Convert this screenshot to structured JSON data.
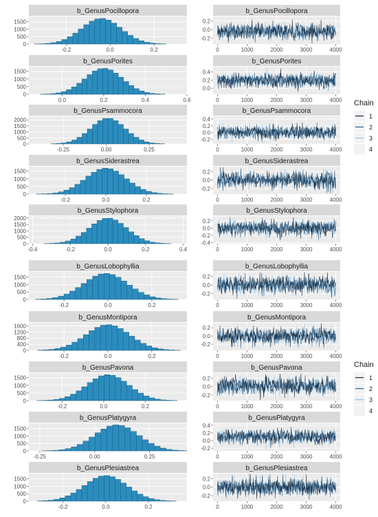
{
  "chart_data": [
    {
      "group": 1,
      "legend": {
        "title": "Chain",
        "chains": [
          "1",
          "2",
          "3",
          "4"
        ],
        "colors": [
          "#132b43",
          "#2f5f87",
          "#93c3e6",
          "#dff0fb"
        ],
        "position": "right"
      },
      "panels": [
        {
          "parameter": "b_GenusPocillopora",
          "histogram": {
            "type": "bar",
            "xlim": [
              -0.37,
              0.35
            ],
            "xticks": [
              -0.2,
              0.0,
              0.2
            ],
            "xtick_labels": [
              "-0.2",
              "0.0",
              "0.2"
            ],
            "ylim": [
              0,
              1850
            ],
            "yticks": [
              0,
              500,
              1000,
              1500
            ],
            "ytick_labels": [
              "0",
              "500",
              "1000",
              "1500"
            ],
            "mean": -0.04,
            "sd": 0.09,
            "peak": 1720,
            "bin_width": 0.025
          },
          "trace": {
            "type": "line",
            "xlim": [
              -150,
              4150
            ],
            "xticks": [
              0,
              1000,
              2000,
              3000,
              4000
            ],
            "xtick_labels": [
              "0",
              "1000",
              "2000",
              "3000",
              "4000"
            ],
            "ylim": [
              -0.33,
              0.3
            ],
            "yticks": [
              -0.2,
              0.0,
              0.2
            ],
            "ytick_labels": [
              "-0.2",
              "0.0",
              "0.2"
            ],
            "mean": -0.04,
            "sd": 0.09,
            "iterations": 4000
          }
        },
        {
          "parameter": "b_GenusPorites",
          "histogram": {
            "type": "bar",
            "xlim": [
              -0.16,
              0.6
            ],
            "xticks": [
              0.0,
              0.2,
              0.4,
              0.6
            ],
            "xtick_labels": [
              "0.0",
              "0.2",
              "0.4",
              "0.6"
            ],
            "ylim": [
              0,
              1800
            ],
            "yticks": [
              0,
              500,
              1000,
              1500
            ],
            "ytick_labels": [
              "0",
              "500",
              "1000",
              "1500"
            ],
            "mean": 0.2,
            "sd": 0.09,
            "peak": 1700,
            "bin_width": 0.025
          },
          "trace": {
            "type": "line",
            "xlim": [
              -150,
              4150
            ],
            "xticks": [
              0,
              1000,
              2000,
              3000,
              4000
            ],
            "xtick_labels": [
              "0",
              "1000",
              "2000",
              "3000",
              "4000"
            ],
            "ylim": [
              -0.15,
              0.53
            ],
            "yticks": [
              0.0,
              0.2,
              0.4
            ],
            "ytick_labels": [
              "0.0",
              "0.2",
              "0.4"
            ],
            "mean": 0.2,
            "sd": 0.09,
            "iterations": 4000
          }
        },
        {
          "parameter": "b_GenusPsammocora",
          "histogram": {
            "type": "bar",
            "xlim": [
              -0.45,
              0.47
            ],
            "xticks": [
              -0.25,
              0.0,
              0.25
            ],
            "xtick_labels": [
              "-0.25",
              "0.00",
              "0.25"
            ],
            "ylim": [
              0,
              2300
            ],
            "yticks": [
              0,
              500,
              1000,
              1500,
              2000
            ],
            "ytick_labels": [
              "0",
              "500",
              "1000",
              "1500",
              "2000"
            ],
            "mean": 0.01,
            "sd": 0.1,
            "peak": 2150,
            "bin_width": 0.03
          },
          "trace": {
            "type": "line",
            "xlim": [
              -150,
              4150
            ],
            "xticks": [
              0,
              1000,
              2000,
              3000,
              4000
            ],
            "xtick_labels": [
              "0",
              "1000",
              "2000",
              "3000",
              "4000"
            ],
            "ylim": [
              -0.33,
              0.48
            ],
            "yticks": [
              -0.2,
              0.0,
              0.2,
              0.4
            ],
            "ytick_labels": [
              "-0.2",
              "0.0",
              "0.2",
              "0.4"
            ],
            "mean": 0.01,
            "sd": 0.1,
            "iterations": 4000
          }
        },
        {
          "parameter": "b_GenusSiderastrea",
          "histogram": {
            "type": "bar",
            "xlim": [
              -0.38,
              0.4
            ],
            "xticks": [
              -0.2,
              0.0,
              0.2
            ],
            "xtick_labels": [
              "-0.2",
              "0.0",
              "0.2"
            ],
            "ylim": [
              0,
              1800
            ],
            "yticks": [
              0,
              500,
              1000,
              1500
            ],
            "ytick_labels": [
              "0",
              "500",
              "1000",
              "1500"
            ],
            "mean": 0.0,
            "sd": 0.1,
            "peak": 1700,
            "bin_width": 0.027
          },
          "trace": {
            "type": "line",
            "xlim": [
              -150,
              4150
            ],
            "xticks": [
              0,
              1000,
              2000,
              3000,
              4000
            ],
            "xtick_labels": [
              "0",
              "1000",
              "2000",
              "3000",
              "4000"
            ],
            "ylim": [
              -0.33,
              0.32
            ],
            "yticks": [
              -0.2,
              0.0,
              0.2
            ],
            "ytick_labels": [
              "-0.2",
              "0.0",
              "0.2"
            ],
            "mean": 0.0,
            "sd": 0.1,
            "iterations": 4000
          }
        },
        {
          "parameter": "b_GenusStylophora",
          "histogram": {
            "type": "bar",
            "xlim": [
              -0.42,
              0.42
            ],
            "xticks": [
              -0.4,
              -0.2,
              0.0,
              0.2,
              0.4
            ],
            "xtick_labels": [
              "-0.4",
              "-0.2",
              "0.0",
              "0.2",
              "0.4"
            ],
            "ylim": [
              0,
              2150
            ],
            "yticks": [
              0,
              500,
              1000,
              1500,
              2000
            ],
            "ytick_labels": [
              "0",
              "500",
              "1000",
              "1500",
              "2000"
            ],
            "mean": 0.0,
            "sd": 0.1,
            "peak": 2000,
            "bin_width": 0.028
          },
          "trace": {
            "type": "line",
            "xlim": [
              -150,
              4150
            ],
            "xticks": [
              0,
              1000,
              2000,
              3000,
              4000
            ],
            "xtick_labels": [
              "0",
              "1000",
              "2000",
              "3000",
              "4000"
            ],
            "ylim": [
              -0.43,
              0.33
            ],
            "yticks": [
              -0.4,
              -0.2,
              0.0,
              0.2
            ],
            "ytick_labels": [
              "-0.4",
              "-0.2",
              "0.0",
              "0.2"
            ],
            "mean": 0.0,
            "sd": 0.1,
            "iterations": 4000
          }
        }
      ]
    },
    {
      "group": 2,
      "legend": {
        "title": "Chain",
        "chains": [
          "1",
          "2",
          "3",
          "4"
        ],
        "colors": [
          "#132b43",
          "#2f5f87",
          "#93c3e6",
          "#dff0fb"
        ],
        "position": "right"
      },
      "panels": [
        {
          "parameter": "b_GenusLobophyllia",
          "histogram": {
            "type": "bar",
            "xlim": [
              -0.36,
              0.36
            ],
            "xticks": [
              -0.2,
              0.0,
              0.2
            ],
            "xtick_labels": [
              "-0.2",
              "0.0",
              "0.2"
            ],
            "ylim": [
              0,
              1850
            ],
            "yticks": [
              0,
              500,
              1000,
              1500
            ],
            "ytick_labels": [
              "0",
              "500",
              "1000",
              "1500"
            ],
            "mean": -0.01,
            "sd": 0.1,
            "peak": 1750,
            "bin_width": 0.026
          },
          "trace": {
            "type": "line",
            "xlim": [
              -150,
              4150
            ],
            "xticks": [
              0,
              1000,
              2000,
              3000,
              4000
            ],
            "xtick_labels": [
              "0",
              "1000",
              "2000",
              "3000",
              "4000"
            ],
            "ylim": [
              -0.33,
              0.3
            ],
            "yticks": [
              -0.2,
              0.0,
              0.2
            ],
            "ytick_labels": [
              "-0.2",
              "0.0",
              "0.2"
            ],
            "mean": 0.0,
            "sd": 0.1,
            "iterations": 4000
          }
        },
        {
          "parameter": "b_GenusMontipora",
          "histogram": {
            "type": "bar",
            "xlim": [
              -0.36,
              0.36
            ],
            "xticks": [
              -0.2,
              0.0,
              0.2
            ],
            "xtick_labels": [
              "-0.2",
              "0.0",
              "0.2"
            ],
            "ylim": [
              0,
              1800
            ],
            "yticks": [
              0,
              400,
              800,
              1200,
              1600
            ],
            "ytick_labels": [
              "0",
              "400",
              "800",
              "1200",
              "1600"
            ],
            "mean": 0.0,
            "sd": 0.1,
            "peak": 1680,
            "bin_width": 0.026
          },
          "trace": {
            "type": "line",
            "xlim": [
              -150,
              4150
            ],
            "xticks": [
              0,
              1000,
              2000,
              3000,
              4000
            ],
            "xtick_labels": [
              "0",
              "1000",
              "2000",
              "3000",
              "4000"
            ],
            "ylim": [
              -0.35,
              0.32
            ],
            "yticks": [
              -0.2,
              0.0,
              0.2
            ],
            "ytick_labels": [
              "-0.2",
              "0.0",
              "0.2"
            ],
            "mean": 0.0,
            "sd": 0.1,
            "iterations": 4000
          }
        },
        {
          "parameter": "b_GenusPavona",
          "histogram": {
            "type": "bar",
            "xlim": [
              -0.36,
              0.4
            ],
            "xticks": [
              -0.2,
              0.0,
              0.2
            ],
            "xtick_labels": [
              "-0.2",
              "0.0",
              "0.2"
            ],
            "ylim": [
              0,
              1800
            ],
            "yticks": [
              0,
              500,
              1000,
              1500
            ],
            "ytick_labels": [
              "0",
              "500",
              "1000",
              "1500"
            ],
            "mean": 0.02,
            "sd": 0.1,
            "peak": 1700,
            "bin_width": 0.027
          },
          "trace": {
            "type": "line",
            "xlim": [
              -150,
              4150
            ],
            "xticks": [
              0,
              1000,
              2000,
              3000,
              4000
            ],
            "xtick_labels": [
              "0",
              "1000",
              "2000",
              "3000",
              "4000"
            ],
            "ylim": [
              -0.33,
              0.32
            ],
            "yticks": [
              -0.2,
              0.0,
              0.2
            ],
            "ytick_labels": [
              "-0.2",
              "0.0",
              "0.2"
            ],
            "mean": 0.02,
            "sd": 0.1,
            "iterations": 4000
          }
        },
        {
          "parameter": "b_GenusPlatygyra",
          "histogram": {
            "type": "bar",
            "xlim": [
              -0.3,
              0.42
            ],
            "xticks": [
              -0.25,
              0.0,
              0.25
            ],
            "xtick_labels": [
              "-0.25",
              "0.00",
              "0.25"
            ],
            "ylim": [
              0,
              1850
            ],
            "yticks": [
              0,
              500,
              1000,
              1500
            ],
            "ytick_labels": [
              "0",
              "500",
              "1000",
              "1500"
            ],
            "mean": 0.1,
            "sd": 0.1,
            "peak": 1750,
            "bin_width": 0.027
          },
          "trace": {
            "type": "line",
            "xlim": [
              -150,
              4150
            ],
            "xticks": [
              0,
              1000,
              2000,
              3000,
              4000
            ],
            "xtick_labels": [
              "0",
              "1000",
              "2000",
              "3000",
              "4000"
            ],
            "ylim": [
              -0.27,
              0.45
            ],
            "yticks": [
              -0.2,
              0.0,
              0.2,
              0.4
            ],
            "ytick_labels": [
              "-0.2",
              "0.0",
              "0.2",
              "0.4"
            ],
            "mean": 0.1,
            "sd": 0.1,
            "iterations": 4000
          }
        },
        {
          "parameter": "b_GenusPlesiastrea",
          "histogram": {
            "type": "bar",
            "xlim": [
              -0.36,
              0.38
            ],
            "xticks": [
              -0.2,
              0.0,
              0.2
            ],
            "xtick_labels": [
              "-0.2",
              "0.0",
              "0.2"
            ],
            "ylim": [
              0,
              1850
            ],
            "yticks": [
              0,
              500,
              1000,
              1500
            ],
            "ytick_labels": [
              "0",
              "500",
              "1000",
              "1500"
            ],
            "mean": 0.0,
            "sd": 0.1,
            "peak": 1720,
            "bin_width": 0.026
          },
          "trace": {
            "type": "line",
            "xlim": [
              -150,
              4150
            ],
            "xticks": [
              0,
              1000,
              2000,
              3000,
              4000
            ],
            "xtick_labels": [
              "0",
              "1000",
              "2000",
              "3000",
              "4000"
            ],
            "ylim": [
              -0.33,
              0.32
            ],
            "yticks": [
              -0.2,
              0.0,
              0.2
            ],
            "ytick_labels": [
              "-0.2",
              "0.0",
              "0.2"
            ],
            "mean": 0.0,
            "sd": 0.1,
            "iterations": 4000
          }
        }
      ]
    }
  ]
}
